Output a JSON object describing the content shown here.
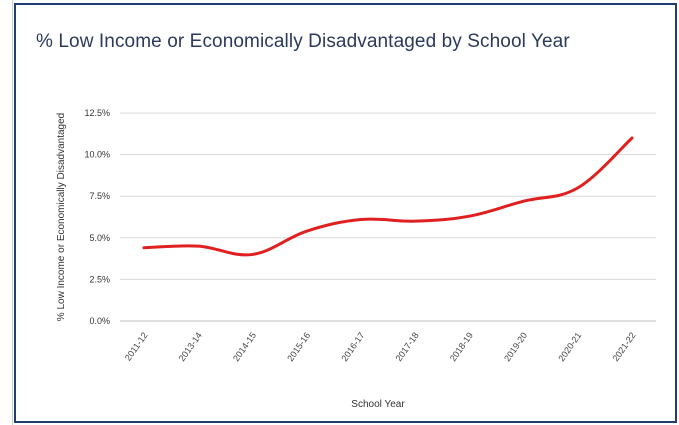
{
  "chart_data": {
    "type": "line",
    "title": "% Low Income or Economically Disadvantaged by School Year",
    "xlabel": "School Year",
    "ylabel": "% Low Income or Economically Disadvantaged",
    "categories": [
      "2011-12",
      "2013-14",
      "2014-15",
      "2015-16",
      "2016-17",
      "2017-18",
      "2018-19",
      "2019-20",
      "2020-21",
      "2021-22"
    ],
    "series": [
      {
        "values": [
          4.4,
          4.5,
          4.0,
          5.4,
          6.1,
          6.0,
          6.3,
          7.2,
          8.0,
          11.0
        ],
        "color": "#e02020"
      }
    ],
    "y_ticks": [
      "0.0%",
      "2.5%",
      "5.0%",
      "7.5%",
      "10.0%",
      "12.5%"
    ],
    "ylim": [
      0,
      12.5
    ],
    "grid": true,
    "smooth": true
  }
}
